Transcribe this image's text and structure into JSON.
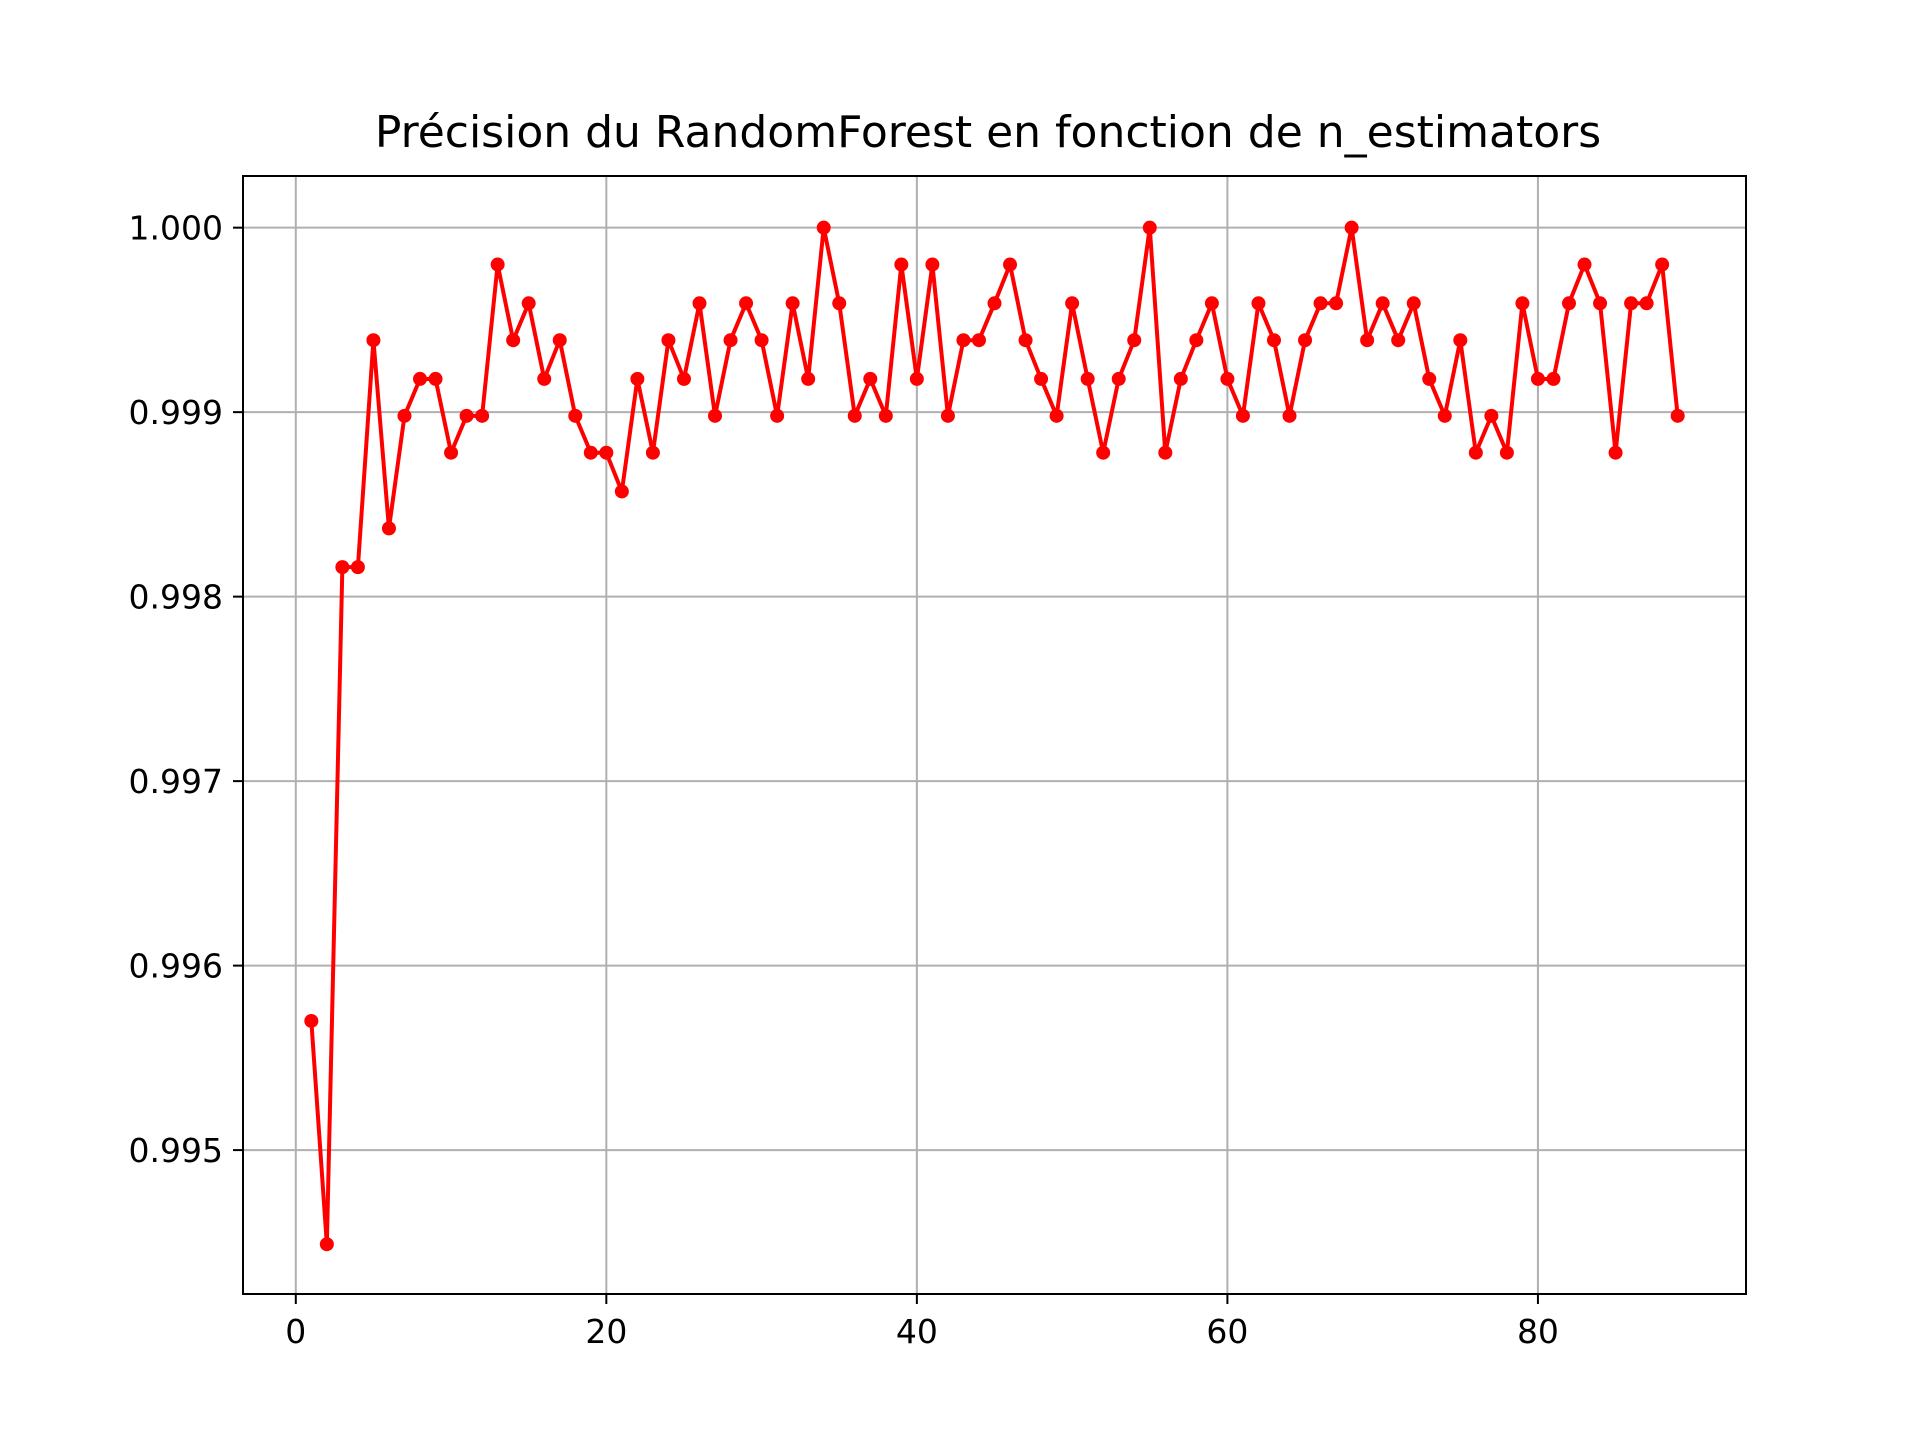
{
  "chart_data": {
    "type": "line",
    "title": "Précision du RandomForest en fonction de n_estimators",
    "xlabel": "",
    "ylabel": "",
    "xlim": [
      -3.4,
      93.4
    ],
    "ylim": [
      0.99422,
      1.00028
    ],
    "xticks": [
      0,
      20,
      40,
      60,
      80
    ],
    "xtick_labels": [
      "0",
      "20",
      "40",
      "60",
      "80"
    ],
    "yticks": [
      0.995,
      0.996,
      0.997,
      0.998,
      0.999,
      1.0
    ],
    "ytick_labels": [
      "0.995",
      "0.996",
      "0.997",
      "0.998",
      "0.999",
      "1.000"
    ],
    "grid": true,
    "series": [
      {
        "color": "#ff0000",
        "marker": "circle",
        "x": [
          1,
          2,
          3,
          4,
          5,
          6,
          7,
          8,
          9,
          10,
          11,
          12,
          13,
          14,
          15,
          16,
          17,
          18,
          19,
          20,
          21,
          22,
          23,
          24,
          25,
          26,
          27,
          28,
          29,
          30,
          31,
          32,
          33,
          34,
          35,
          36,
          37,
          38,
          39,
          40,
          41,
          42,
          43,
          44,
          45,
          46,
          47,
          48,
          49,
          50,
          51,
          52,
          53,
          54,
          55,
          56,
          57,
          58,
          59,
          60,
          61,
          62,
          63,
          64,
          65,
          66,
          67,
          68,
          69,
          70,
          71,
          72,
          73,
          74,
          75,
          76,
          77,
          78,
          79,
          80,
          81,
          82,
          83,
          84,
          85,
          86,
          87,
          88,
          89
        ],
        "y": [
          0.9957,
          0.99449,
          0.99816,
          0.99816,
          0.99939,
          0.99837,
          0.99898,
          0.99918,
          0.99918,
          0.99878,
          0.99898,
          0.99898,
          0.9998,
          0.99939,
          0.99959,
          0.99918,
          0.99939,
          0.99898,
          0.99878,
          0.99878,
          0.99857,
          0.99918,
          0.99878,
          0.99939,
          0.99918,
          0.99959,
          0.99898,
          0.99939,
          0.99959,
          0.99939,
          0.99898,
          0.99959,
          0.99918,
          1.0,
          0.99959,
          0.99898,
          0.99918,
          0.99898,
          0.9998,
          0.99918,
          0.9998,
          0.99898,
          0.99939,
          0.99939,
          0.99959,
          0.9998,
          0.99939,
          0.99918,
          0.99898,
          0.99959,
          0.99918,
          0.99878,
          0.99918,
          0.99939,
          1.0,
          0.99878,
          0.99918,
          0.99939,
          0.99959,
          0.99918,
          0.99898,
          0.99959,
          0.99939,
          0.99898,
          0.99939,
          0.99959,
          0.99959,
          1.0,
          0.99939,
          0.99959,
          0.99939,
          0.99959,
          0.99918,
          0.99898,
          0.99939,
          0.99878,
          0.99898,
          0.99878,
          0.99959,
          0.99918,
          0.99918,
          0.99959,
          0.9998,
          0.99959,
          0.99878,
          0.99959,
          0.99959,
          0.9998,
          0.99898
        ]
      }
    ]
  }
}
